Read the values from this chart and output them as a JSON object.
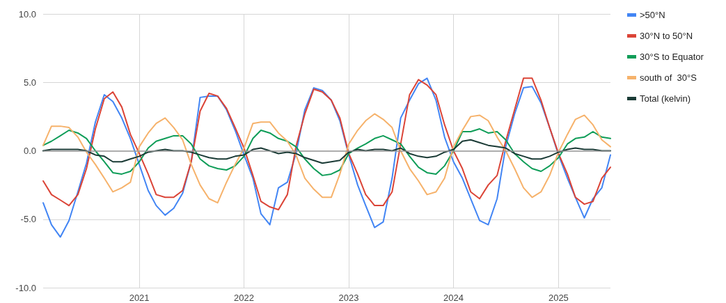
{
  "chart_data": {
    "type": "line",
    "x": [
      "2020-02",
      "2020-03",
      "2020-04",
      "2020-05",
      "2020-06",
      "2020-07",
      "2020-08",
      "2020-09",
      "2020-10",
      "2020-11",
      "2020-12",
      "2021-01",
      "2021-02",
      "2021-03",
      "2021-04",
      "2021-05",
      "2021-06",
      "2021-07",
      "2021-08",
      "2021-09",
      "2021-10",
      "2021-11",
      "2021-12",
      "2022-01",
      "2022-02",
      "2022-03",
      "2022-04",
      "2022-05",
      "2022-06",
      "2022-07",
      "2022-08",
      "2022-09",
      "2022-10",
      "2022-11",
      "2022-12",
      "2023-01",
      "2023-02",
      "2023-03",
      "2023-04",
      "2023-05",
      "2023-06",
      "2023-07",
      "2023-08",
      "2023-09",
      "2023-10",
      "2023-11",
      "2023-12",
      "2024-01",
      "2024-02",
      "2024-03",
      "2024-04",
      "2024-05",
      "2024-06",
      "2024-07",
      "2024-08",
      "2024-09",
      "2024-10",
      "2024-11",
      "2024-12",
      "2025-01",
      "2025-02",
      "2025-03",
      "2025-04",
      "2025-05",
      "2025-06",
      "2025-07"
    ],
    "series": [
      {
        "name": ">50°N",
        "color": "#4285f4",
        "values": [
          -3.8,
          -5.4,
          -6.3,
          -5.1,
          -3.0,
          -0.9,
          2.1,
          4.1,
          3.6,
          2.4,
          0.9,
          -1.0,
          -2.9,
          -4.0,
          -4.7,
          -4.2,
          -3.1,
          -0.8,
          3.9,
          4.0,
          4.0,
          3.0,
          1.5,
          -0.3,
          -2.0,
          -4.6,
          -5.4,
          -2.7,
          -2.3,
          -0.2,
          3.0,
          4.6,
          4.4,
          3.7,
          2.2,
          -0.3,
          -2.5,
          -4.0,
          -5.6,
          -5.2,
          -2.0,
          2.4,
          3.7,
          4.9,
          5.3,
          3.7,
          1.0,
          -0.8,
          -2.0,
          -3.5,
          -5.1,
          -5.4,
          -3.5,
          0.3,
          2.7,
          4.6,
          4.7,
          3.5,
          1.7,
          -0.3,
          -2.0,
          -3.4,
          -4.9,
          -3.5,
          -2.7,
          -0.3
        ]
      },
      {
        "name": "30°N to 50°N",
        "color": "#db4437",
        "values": [
          -2.2,
          -3.2,
          -3.6,
          -4.0,
          -3.2,
          -1.3,
          1.6,
          3.8,
          4.3,
          3.2,
          1.2,
          -0.2,
          -1.7,
          -3.2,
          -3.4,
          -3.4,
          -2.9,
          -0.8,
          2.9,
          4.2,
          4.0,
          3.1,
          1.7,
          0.2,
          -1.8,
          -3.7,
          -4.1,
          -4.3,
          -3.2,
          0.3,
          2.7,
          4.5,
          4.3,
          3.7,
          2.4,
          -0.2,
          -1.7,
          -3.2,
          -4.0,
          -4.0,
          -3.0,
          0.5,
          4.1,
          5.2,
          4.8,
          4.1,
          1.9,
          0.0,
          -1.3,
          -3.0,
          -3.5,
          -2.5,
          -1.8,
          0.7,
          3.0,
          5.3,
          5.3,
          3.7,
          1.7,
          -0.2,
          -1.7,
          -3.4,
          -3.9,
          -3.7,
          -2.0,
          -1.2
        ]
      },
      {
        "name": "30°S to Equator",
        "color": "#0f9d58",
        "values": [
          0.4,
          0.7,
          1.1,
          1.5,
          1.3,
          0.9,
          0.0,
          -0.8,
          -1.6,
          -1.7,
          -1.5,
          -0.8,
          0.2,
          0.7,
          0.9,
          1.1,
          1.1,
          0.5,
          -0.6,
          -1.1,
          -1.3,
          -1.4,
          -1.1,
          -0.4,
          0.9,
          1.5,
          1.3,
          0.9,
          0.7,
          0.3,
          -0.6,
          -1.3,
          -1.8,
          -1.7,
          -1.4,
          -0.2,
          0.2,
          0.5,
          0.9,
          1.1,
          0.8,
          0.5,
          -0.4,
          -1.2,
          -1.6,
          -1.7,
          -1.1,
          0.0,
          1.4,
          1.4,
          1.6,
          1.3,
          1.4,
          0.8,
          -0.2,
          -0.8,
          -1.3,
          -1.5,
          -1.1,
          -0.5,
          0.5,
          0.9,
          1.0,
          1.4,
          1.0,
          0.9
        ]
      },
      {
        "name": "south of  30°S",
        "color": "#f6b26b",
        "values": [
          0.4,
          1.8,
          1.8,
          1.7,
          1.0,
          -0.1,
          -1.0,
          -2.0,
          -3.0,
          -2.7,
          -2.3,
          0.3,
          1.3,
          2.0,
          2.4,
          1.7,
          0.8,
          -1.0,
          -2.5,
          -3.5,
          -3.8,
          -2.3,
          -1.0,
          0.2,
          2.0,
          2.1,
          2.1,
          1.3,
          0.7,
          -0.3,
          -2.0,
          -2.8,
          -3.4,
          -3.4,
          -1.7,
          0.5,
          1.5,
          2.2,
          2.7,
          2.3,
          1.7,
          0.0,
          -1.3,
          -2.2,
          -3.2,
          -3.0,
          -2.0,
          0.3,
          1.5,
          2.5,
          2.6,
          2.2,
          1.0,
          0.0,
          -1.3,
          -2.7,
          -3.4,
          -3.0,
          -1.8,
          -0.1,
          1.2,
          2.3,
          2.6,
          1.9,
          0.8,
          0.3
        ]
      },
      {
        "name": "Total (kelvin)",
        "color": "#1b3b36",
        "values": [
          0.0,
          0.1,
          0.1,
          0.1,
          0.1,
          0.0,
          -0.3,
          -0.4,
          -0.8,
          -0.8,
          -0.6,
          -0.4,
          -0.1,
          0.0,
          0.1,
          0.0,
          0.0,
          -0.1,
          -0.3,
          -0.5,
          -0.6,
          -0.6,
          -0.4,
          -0.3,
          0.1,
          0.2,
          0.0,
          -0.2,
          -0.1,
          -0.2,
          -0.5,
          -0.7,
          -0.9,
          -0.8,
          -0.7,
          -0.1,
          0.1,
          0.0,
          0.1,
          0.1,
          0.0,
          0.2,
          -0.2,
          -0.4,
          -0.5,
          -0.4,
          -0.1,
          0.1,
          0.7,
          0.8,
          0.6,
          0.4,
          0.3,
          0.2,
          -0.2,
          -0.4,
          -0.6,
          -0.6,
          -0.4,
          -0.1,
          0.1,
          0.2,
          0.1,
          0.1,
          0.0,
          0.0
        ]
      }
    ],
    "xlim": [
      "2020-02",
      "2025-07"
    ],
    "xticks": [
      "2021",
      "2022",
      "2023",
      "2024",
      "2025"
    ],
    "ylim": [
      -10,
      10
    ],
    "yticks": [
      {
        "value": -10,
        "label": "-10.0"
      },
      {
        "value": -5,
        "label": "-5.0"
      },
      {
        "value": 0,
        "label": "0.0"
      },
      {
        "value": 5,
        "label": "5.0"
      },
      {
        "value": 10,
        "label": "10.0"
      }
    ],
    "ref_lines": [
      {
        "axis": "y",
        "value": 0,
        "label": null,
        "color": "#999999"
      }
    ],
    "grid": true,
    "legend": "top right",
    "marker": "none",
    "line_style": "solid"
  }
}
